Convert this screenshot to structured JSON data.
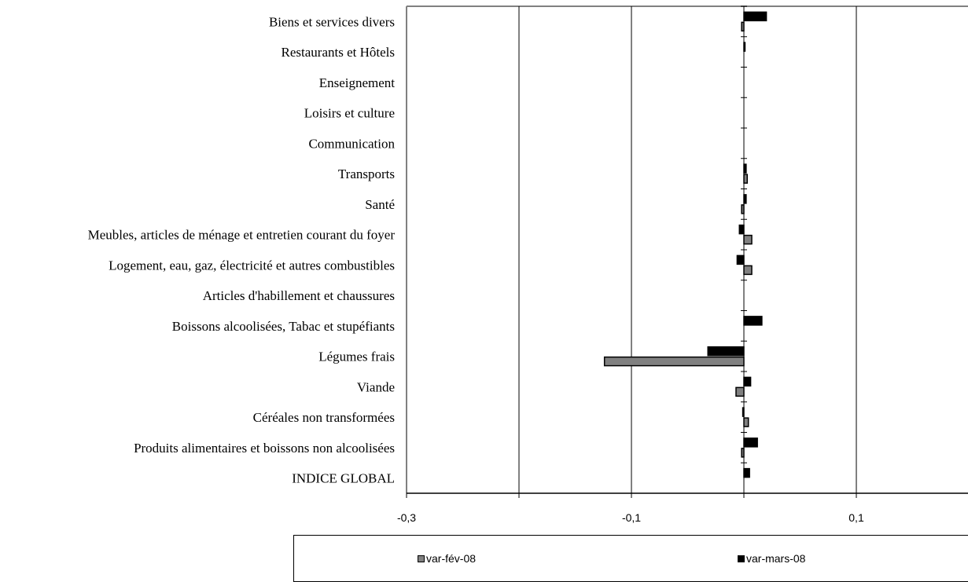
{
  "chart_data": {
    "type": "bar",
    "orientation": "horizontal",
    "categories": [
      "Biens et services divers",
      "Restaurants et Hôtels",
      "Enseignement",
      "Loisirs et culture",
      "Communication",
      "Transports",
      "Santé",
      "Meubles, articles de ménage et entretien courant du foyer",
      "Logement, eau, gaz, électricité et autres combustibles",
      "Articles d'habillement et chaussures",
      "Boissons alcoolisées,  Tabac et stupéfiants",
      "Légumes frais",
      "Viande",
      "Céréales non transformées",
      "Produits alimentaires et boissons non alcoolisées",
      "INDICE GLOBAL"
    ],
    "series": [
      {
        "name": "var-fév-08",
        "color": "#808080",
        "values": [
          -0.002,
          0.0,
          0.0,
          0.0,
          0.0,
          0.003,
          -0.002,
          0.007,
          0.007,
          0.0,
          0.0,
          -0.124,
          -0.007,
          0.004,
          -0.002,
          0.0
        ]
      },
      {
        "name": "var-mars-08",
        "color": "#000000",
        "values": [
          0.02,
          0.001,
          0.0,
          0.0,
          0.0,
          0.002,
          0.002,
          -0.004,
          -0.006,
          0.0,
          0.016,
          -0.032,
          0.006,
          -0.001,
          0.012,
          0.005
        ]
      }
    ],
    "xlim": [
      -0.3,
      0.2
    ],
    "tick_labels": [
      "-0,3",
      "-0,1",
      "0,1"
    ],
    "xlabel": "",
    "ylabel": "",
    "grid": "vertical",
    "legend": "bottom"
  }
}
